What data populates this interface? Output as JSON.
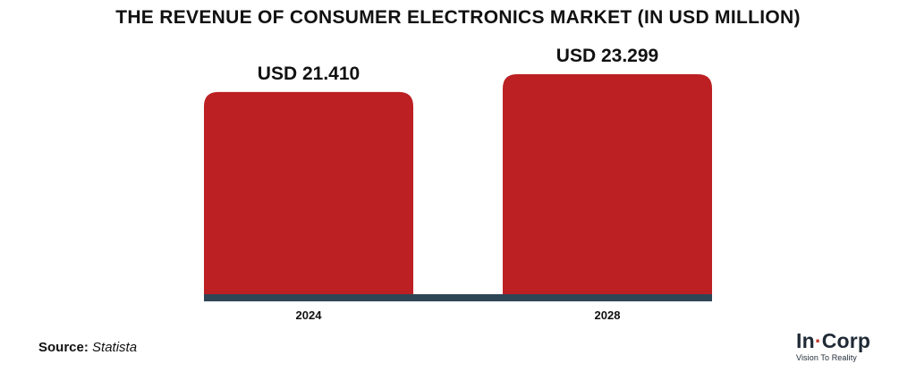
{
  "chart_data": {
    "type": "bar",
    "title": "THE REVENUE OF CONSUMER ELECTRONICS MARKET (IN USD MILLION)",
    "categories": [
      "2024",
      "2028"
    ],
    "values": [
      21.41,
      23.299
    ],
    "data_labels": [
      "USD 21.410",
      "USD 23.299"
    ],
    "xlabel": "",
    "ylabel": "",
    "ylim": [
      0,
      25
    ],
    "grid": false,
    "legend": "none",
    "bar_color": "#bc2023",
    "baseline_color": "#2e4556"
  },
  "source": {
    "label": "Source:",
    "value": "Statista"
  },
  "logo": {
    "text_a": "In",
    "text_dot": "·",
    "text_b": "Corp",
    "tagline": "Vision To Reality"
  }
}
